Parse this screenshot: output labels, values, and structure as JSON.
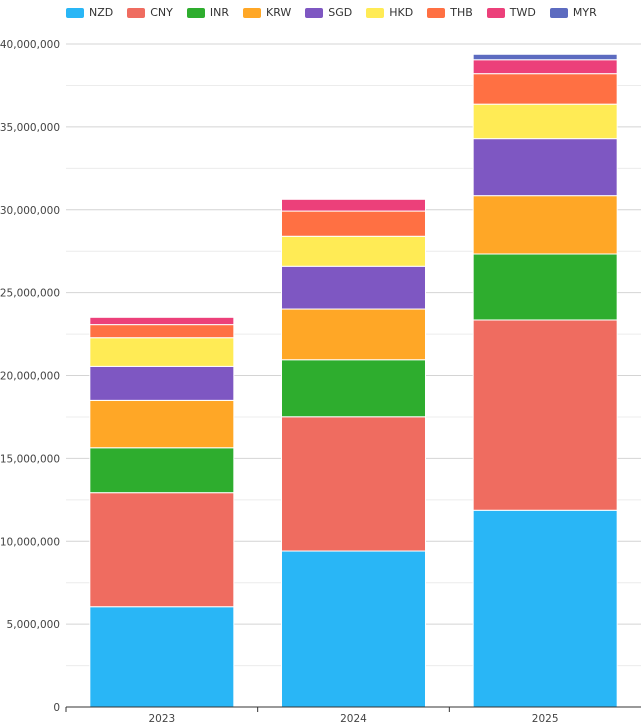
{
  "chart_data": {
    "type": "bar",
    "stacked": true,
    "categories": [
      "2023",
      "2024",
      "2025"
    ],
    "series": [
      {
        "name": "NZD",
        "color": "#29b6f6",
        "values": [
          6050000,
          9410000,
          11870000
        ]
      },
      {
        "name": "CNY",
        "color": "#ef6c60",
        "values": [
          6880000,
          8100000,
          11480000
        ]
      },
      {
        "name": "INR",
        "color": "#2ead2e",
        "values": [
          2710000,
          3440000,
          3980000
        ]
      },
      {
        "name": "KRW",
        "color": "#ffa726",
        "values": [
          2860000,
          3060000,
          3520000
        ]
      },
      {
        "name": "SGD",
        "color": "#7e57c2",
        "values": [
          2050000,
          2580000,
          3440000
        ]
      },
      {
        "name": "HKD",
        "color": "#ffeb55",
        "values": [
          1730000,
          1810000,
          2080000
        ]
      },
      {
        "name": "THB",
        "color": "#ff7043",
        "values": [
          790000,
          1520000,
          1840000
        ]
      },
      {
        "name": "TWD",
        "color": "#ec407a",
        "values": [
          440000,
          710000,
          840000
        ]
      },
      {
        "name": "MYR",
        "color": "#5c6bc0",
        "values": [
          0,
          0,
          330000
        ]
      }
    ],
    "ylim": [
      0,
      40000000
    ],
    "yticks": [
      "0",
      "5,000,000",
      "10,000,000",
      "15,000,000",
      "20,000,000",
      "25,000,000",
      "30,000,000",
      "35,000,000",
      "40,000,000"
    ],
    "grid": true,
    "legend": "top"
  }
}
